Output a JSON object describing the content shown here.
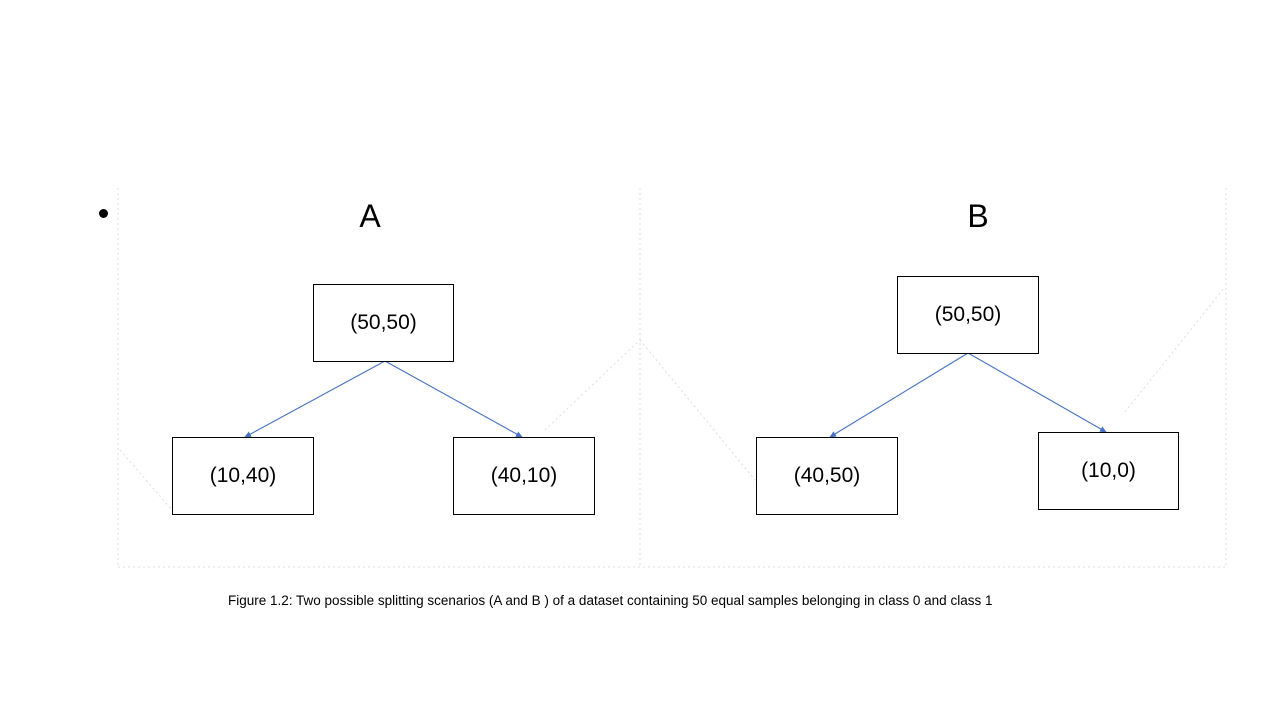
{
  "panels": {
    "a": {
      "title": "A",
      "root": "(50,50)",
      "left_child": "(10,40)",
      "right_child": "(40,10)"
    },
    "b": {
      "title": "B",
      "root": "(50,50)",
      "left_child": "(40,50)",
      "right_child": "(10,0)"
    }
  },
  "caption": "Figure 1.2: Two possible splitting scenarios (A and B )  of a dataset containing 50 equal samples belonging in class 0 and class 1",
  "colors": {
    "edge": "#4472C4",
    "node_border": "#000000",
    "frame_dotted": "#d9dde6"
  }
}
